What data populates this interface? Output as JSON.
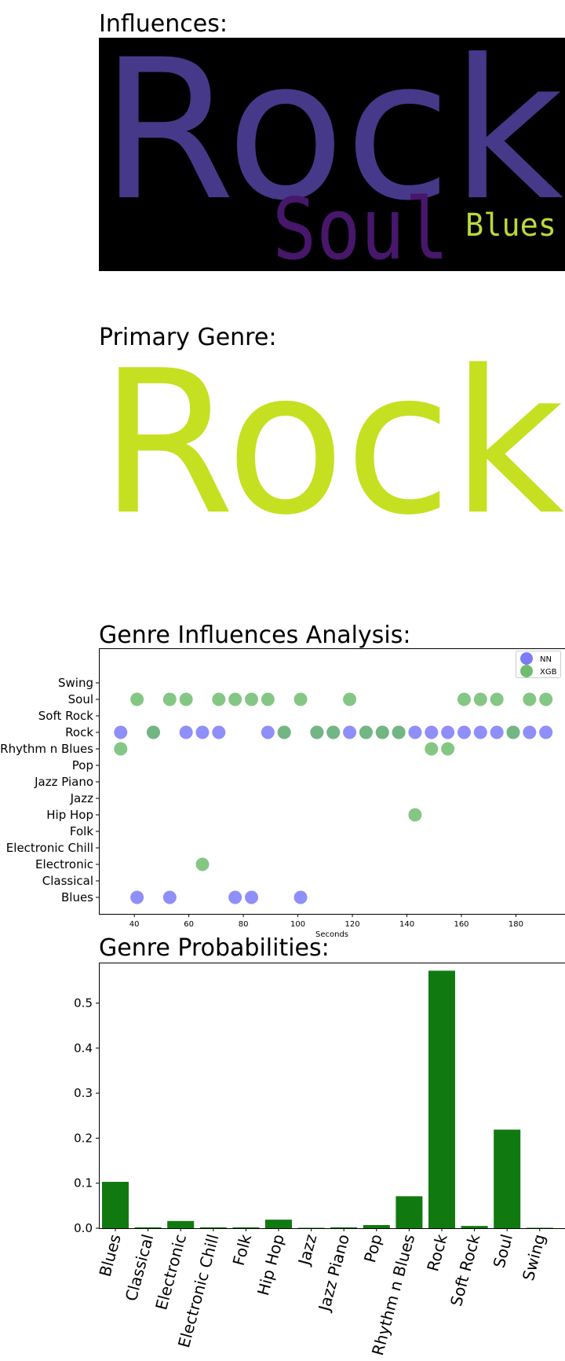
{
  "sections": {
    "influences_title": "Influences:",
    "primary_title": "Primary Genre:",
    "analysis_title": "Genre Influences Analysis:",
    "probabilities_title": "Genre Probabilities:"
  },
  "primary_genre": "Rock",
  "colors": {
    "rock_word": "#46398a",
    "soul_word": "#47176b",
    "blues_word": "#bbd93a",
    "primary_word": "#c5e021",
    "nn": "#7b7bf8",
    "xgb": "#6ebd6e",
    "bar": "#107a10"
  },
  "chart_data": [
    {
      "type": "wordcloud",
      "words": [
        {
          "text": "Rock",
          "weight": 1.0
        },
        {
          "text": "Soul",
          "weight": 0.45
        },
        {
          "text": "Blues",
          "weight": 0.18
        }
      ]
    },
    {
      "type": "scatter",
      "title": "Genre Influences Analysis:",
      "xlabel": "Seconds",
      "xlim": [
        27,
        198
      ],
      "xticks": [
        40,
        60,
        80,
        100,
        120,
        140,
        160,
        180
      ],
      "categories": [
        "Blues",
        "Classical",
        "Electronic",
        "Electronic Chill",
        "Folk",
        "Hip Hop",
        "Jazz",
        "Jazz Piano",
        "Pop",
        "Rhythm n Blues",
        "Rock",
        "Soft Rock",
        "Soul",
        "Swing"
      ],
      "legend": "top-right",
      "series": [
        {
          "name": "NN",
          "points": [
            [
              35,
              "Rock"
            ],
            [
              41,
              "Blues"
            ],
            [
              47,
              "Rock"
            ],
            [
              53,
              "Blues"
            ],
            [
              59,
              "Rock"
            ],
            [
              65,
              "Rock"
            ],
            [
              71,
              "Rock"
            ],
            [
              77,
              "Blues"
            ],
            [
              83,
              "Blues"
            ],
            [
              89,
              "Rock"
            ],
            [
              95,
              "Rock"
            ],
            [
              101,
              "Blues"
            ],
            [
              107,
              "Rock"
            ],
            [
              113,
              "Rock"
            ],
            [
              119,
              "Rock"
            ],
            [
              125,
              "Rock"
            ],
            [
              131,
              "Rock"
            ],
            [
              137,
              "Rock"
            ],
            [
              143,
              "Rock"
            ],
            [
              149,
              "Rock"
            ],
            [
              155,
              "Rock"
            ],
            [
              161,
              "Rock"
            ],
            [
              167,
              "Rock"
            ],
            [
              173,
              "Rock"
            ],
            [
              179,
              "Rock"
            ],
            [
              185,
              "Rock"
            ],
            [
              191,
              "Rock"
            ]
          ]
        },
        {
          "name": "XGB",
          "points": [
            [
              35,
              "Rhythm n Blues"
            ],
            [
              41,
              "Soul"
            ],
            [
              47,
              "Rock"
            ],
            [
              53,
              "Soul"
            ],
            [
              59,
              "Soul"
            ],
            [
              65,
              "Electronic"
            ],
            [
              71,
              "Soul"
            ],
            [
              77,
              "Soul"
            ],
            [
              83,
              "Soul"
            ],
            [
              89,
              "Soul"
            ],
            [
              95,
              "Rock"
            ],
            [
              101,
              "Soul"
            ],
            [
              107,
              "Rock"
            ],
            [
              113,
              "Rock"
            ],
            [
              119,
              "Soul"
            ],
            [
              125,
              "Rock"
            ],
            [
              131,
              "Rock"
            ],
            [
              137,
              "Rock"
            ],
            [
              143,
              "Hip Hop"
            ],
            [
              149,
              "Rhythm n Blues"
            ],
            [
              155,
              "Rhythm n Blues"
            ],
            [
              161,
              "Soul"
            ],
            [
              167,
              "Soul"
            ],
            [
              173,
              "Soul"
            ],
            [
              179,
              "Rock"
            ],
            [
              185,
              "Soul"
            ],
            [
              191,
              "Soul"
            ]
          ]
        }
      ]
    },
    {
      "type": "bar",
      "title": "Genre Probabilities:",
      "categories": [
        "Blues",
        "Classical",
        "Electronic",
        "Electronic Chill",
        "Folk",
        "Hip Hop",
        "Jazz",
        "Jazz Piano",
        "Pop",
        "Rhythm n Blues",
        "Rock",
        "Soft Rock",
        "Soul",
        "Swing"
      ],
      "values": [
        0.103,
        0.002,
        0.016,
        0.002,
        0.002,
        0.019,
        0.001,
        0.002,
        0.007,
        0.071,
        0.572,
        0.005,
        0.219,
        0.001
      ],
      "ylim": [
        0,
        0.59
      ],
      "yticks": [
        0.0,
        0.1,
        0.2,
        0.3,
        0.4,
        0.5
      ],
      "ytick_labels": [
        "0.0",
        "0.1",
        "0.2",
        "0.3",
        "0.4",
        "0.5"
      ]
    }
  ]
}
